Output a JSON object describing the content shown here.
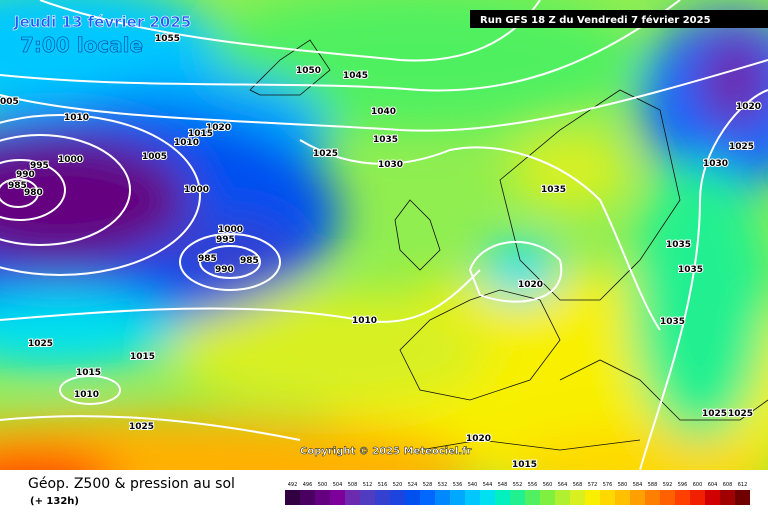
{
  "header": {
    "date": "Jeudi 13 février 2025",
    "time": "7:00 locale",
    "run": "Run GFS 18 Z du Vendredi 7 février 2025"
  },
  "map": {
    "isobar_labels": [
      "1055",
      "1050",
      "1045",
      "005",
      "1040",
      "1010",
      "1020",
      "1015",
      "1010",
      "1035",
      "1005",
      "1025",
      "1000",
      "995",
      "1030",
      "990",
      "985",
      "980",
      "1000",
      "1035",
      "1000",
      "995",
      "985",
      "985",
      "990",
      "1020",
      "1025",
      "1030",
      "1035",
      "1035",
      "1020",
      "1010",
      "1035",
      "1025",
      "1015",
      "1015",
      "1010",
      "1025",
      "1020",
      "1025",
      "1025",
      "1015"
    ],
    "copyright": "Copyright © 2025 Meteociel.fr"
  },
  "footer": {
    "title": "Géop. Z500 & pression au sol",
    "lead_time": "(+ 132h)"
  },
  "legend": {
    "labels": [
      492,
      496,
      500,
      504,
      508,
      512,
      516,
      520,
      524,
      528,
      532,
      536,
      540,
      544,
      548,
      552,
      556,
      560,
      564,
      568,
      572,
      576,
      580,
      584,
      588,
      592,
      596,
      600,
      604,
      608,
      612
    ],
    "colors": [
      "#300040",
      "#4a0060",
      "#650080",
      "#7d009a",
      "#6b2ab0",
      "#4f3cc0",
      "#3340d0",
      "#1e44e0",
      "#0050f0",
      "#0068ff",
      "#0088ff",
      "#00a8ff",
      "#00c8ff",
      "#00e0f0",
      "#00f0c0",
      "#20f090",
      "#50f060",
      "#80f040",
      "#b0f030",
      "#d8f020",
      "#f8f000",
      "#ffd800",
      "#ffc000",
      "#ffa000",
      "#ff8000",
      "#ff6000",
      "#ff4000",
      "#f02000",
      "#d00000",
      "#a00000",
      "#700000"
    ]
  }
}
